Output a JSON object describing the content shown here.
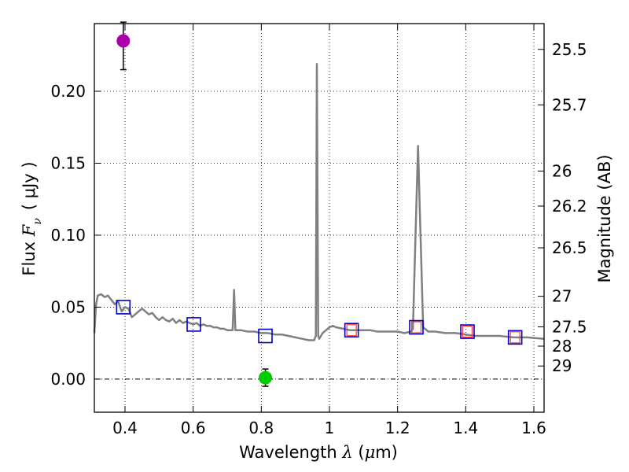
{
  "chart_data": {
    "type": "line",
    "xlabel_prefix": "Wavelength ",
    "xlabel_symbol": "λ",
    "xlabel_unit_open": " (",
    "xlabel_unit_mu": "μ",
    "xlabel_unit_close": "m)",
    "ylabel_prefix": "Flux ",
    "ylabel_symbol": "F",
    "ylabel_subscript": "ν",
    "ylabel_unit": "(  μJy )",
    "y2label": "Magnitude (AB)",
    "xlim": [
      0.31,
      1.63
    ],
    "ylim": [
      -0.023,
      0.247
    ],
    "grid": true,
    "x_ticks": [
      {
        "value": 0.4,
        "label": "0.4"
      },
      {
        "value": 0.6,
        "label": "0.6"
      },
      {
        "value": 0.8,
        "label": "0.8"
      },
      {
        "value": 1.0,
        "label": "1"
      },
      {
        "value": 1.2,
        "label": "1.2"
      },
      {
        "value": 1.4,
        "label": "1.4"
      },
      {
        "value": 1.6,
        "label": "1.6"
      }
    ],
    "y_ticks": [
      {
        "value": 0.0,
        "label": "0.00"
      },
      {
        "value": 0.05,
        "label": "0.05"
      },
      {
        "value": 0.1,
        "label": "0.10"
      },
      {
        "value": 0.15,
        "label": "0.15"
      },
      {
        "value": 0.2,
        "label": "0.20"
      }
    ],
    "y2_ticks": [
      {
        "mag": 25.5,
        "label": "25.5"
      },
      {
        "mag": 25.7,
        "label": "25.7"
      },
      {
        "mag": 26,
        "label": "26"
      },
      {
        "mag": 26.2,
        "label": "26.2"
      },
      {
        "mag": 26.5,
        "label": "26.5"
      },
      {
        "mag": 27,
        "label": "27"
      },
      {
        "mag": 27.5,
        "label": "27.5"
      },
      {
        "mag": 28,
        "label": "28"
      },
      {
        "mag": 29,
        "label": "29"
      }
    ],
    "model_sed": {
      "name": "model spectrum",
      "color": "#808080",
      "points": [
        [
          0.31,
          0.032
        ],
        [
          0.315,
          0.052
        ],
        [
          0.32,
          0.058
        ],
        [
          0.33,
          0.059
        ],
        [
          0.34,
          0.057
        ],
        [
          0.35,
          0.058
        ],
        [
          0.36,
          0.055
        ],
        [
          0.37,
          0.052
        ],
        [
          0.38,
          0.054
        ],
        [
          0.39,
          0.047
        ],
        [
          0.4,
          0.05
        ],
        [
          0.41,
          0.049
        ],
        [
          0.42,
          0.043
        ],
        [
          0.43,
          0.045
        ],
        [
          0.44,
          0.047
        ],
        [
          0.45,
          0.049
        ],
        [
          0.46,
          0.047
        ],
        [
          0.47,
          0.045
        ],
        [
          0.48,
          0.046
        ],
        [
          0.49,
          0.043
        ],
        [
          0.5,
          0.041
        ],
        [
          0.51,
          0.043
        ],
        [
          0.52,
          0.041
        ],
        [
          0.53,
          0.04
        ],
        [
          0.54,
          0.042
        ],
        [
          0.55,
          0.039
        ],
        [
          0.56,
          0.041
        ],
        [
          0.57,
          0.039
        ],
        [
          0.58,
          0.04
        ],
        [
          0.59,
          0.039
        ],
        [
          0.6,
          0.038
        ],
        [
          0.61,
          0.039
        ],
        [
          0.62,
          0.037
        ],
        [
          0.63,
          0.038
        ],
        [
          0.64,
          0.037
        ],
        [
          0.65,
          0.037
        ],
        [
          0.66,
          0.036
        ],
        [
          0.67,
          0.036
        ],
        [
          0.68,
          0.035
        ],
        [
          0.69,
          0.035
        ],
        [
          0.7,
          0.034
        ],
        [
          0.71,
          0.034
        ],
        [
          0.716,
          0.034
        ],
        [
          0.72,
          0.062
        ],
        [
          0.724,
          0.034
        ],
        [
          0.74,
          0.034
        ],
        [
          0.76,
          0.033
        ],
        [
          0.78,
          0.033
        ],
        [
          0.8,
          0.032
        ],
        [
          0.82,
          0.032
        ],
        [
          0.84,
          0.031
        ],
        [
          0.86,
          0.031
        ],
        [
          0.88,
          0.03
        ],
        [
          0.9,
          0.029
        ],
        [
          0.92,
          0.028
        ],
        [
          0.94,
          0.027
        ],
        [
          0.955,
          0.027
        ],
        [
          0.96,
          0.03
        ],
        [
          0.963,
          0.219
        ],
        [
          0.967,
          0.03
        ],
        [
          0.97,
          0.028
        ],
        [
          0.98,
          0.032
        ],
        [
          0.99,
          0.034
        ],
        [
          1.0,
          0.036
        ],
        [
          1.01,
          0.037
        ],
        [
          1.02,
          0.036
        ],
        [
          1.04,
          0.035
        ],
        [
          1.06,
          0.034
        ],
        [
          1.08,
          0.034
        ],
        [
          1.1,
          0.034
        ],
        [
          1.12,
          0.034
        ],
        [
          1.14,
          0.033
        ],
        [
          1.16,
          0.033
        ],
        [
          1.18,
          0.033
        ],
        [
          1.2,
          0.033
        ],
        [
          1.22,
          0.032
        ],
        [
          1.24,
          0.033
        ],
        [
          1.245,
          0.035
        ],
        [
          1.255,
          0.12
        ],
        [
          1.26,
          0.162
        ],
        [
          1.265,
          0.12
        ],
        [
          1.275,
          0.036
        ],
        [
          1.29,
          0.033
        ],
        [
          1.31,
          0.033
        ],
        [
          1.34,
          0.032
        ],
        [
          1.37,
          0.032
        ],
        [
          1.4,
          0.031
        ],
        [
          1.43,
          0.03
        ],
        [
          1.46,
          0.03
        ],
        [
          1.5,
          0.03
        ],
        [
          1.54,
          0.029
        ],
        [
          1.58,
          0.029
        ],
        [
          1.63,
          0.028
        ]
      ]
    },
    "model_photometry": {
      "name": "model photometry",
      "color": "#0000cc",
      "marker": "open square",
      "points": [
        [
          0.395,
          0.05
        ],
        [
          0.602,
          0.038
        ],
        [
          0.812,
          0.03
        ],
        [
          1.065,
          0.034
        ],
        [
          1.255,
          0.036
        ],
        [
          1.405,
          0.033
        ],
        [
          1.545,
          0.029
        ]
      ]
    },
    "observed_photometry": {
      "name": "observed photometry",
      "color": "#ff3333",
      "marker": "open square",
      "points": [
        [
          1.065,
          0.034
        ],
        [
          1.255,
          0.036
        ],
        [
          1.405,
          0.033
        ],
        [
          1.545,
          0.029
        ]
      ]
    },
    "ancillary_points": [
      {
        "name": "detection",
        "color": "#aa00aa",
        "x": 0.395,
        "y": 0.235,
        "err_low": 0.02,
        "err_high": 0.013
      },
      {
        "name": "non-detection",
        "color": "#00cc00",
        "x": 0.812,
        "y": 0.001,
        "err_low": 0.006,
        "err_high": 0.006
      }
    ]
  }
}
